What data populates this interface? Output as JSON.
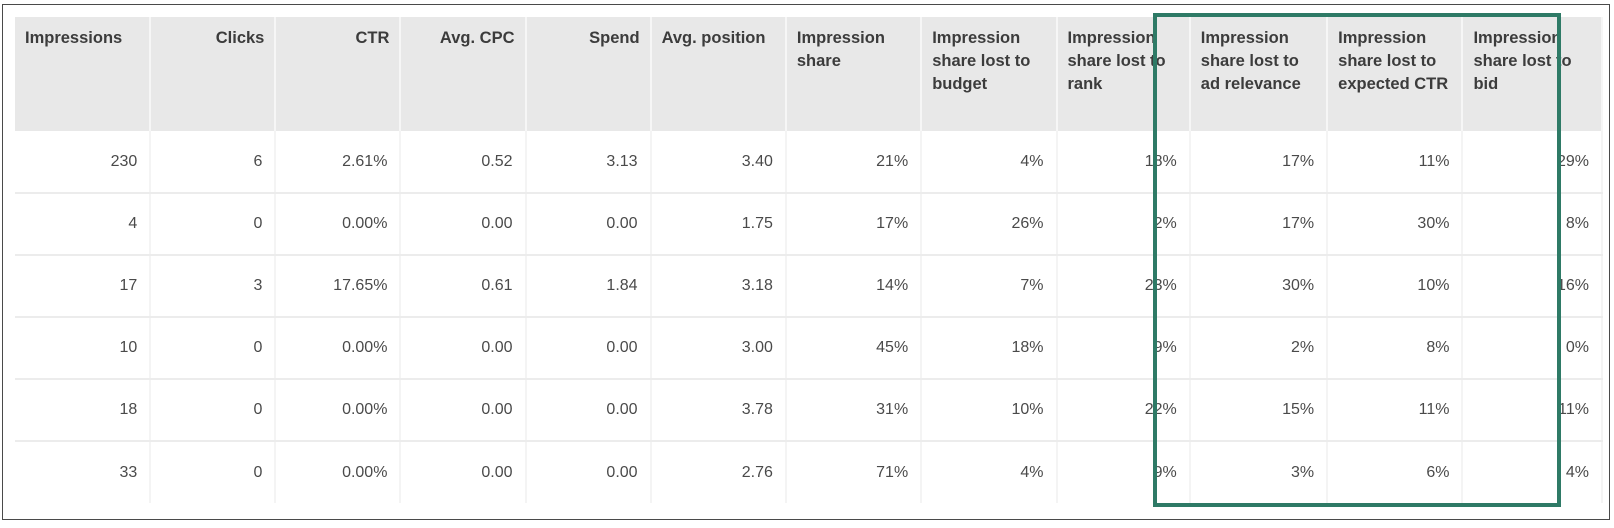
{
  "columns": [
    {
      "key": "impressions",
      "label": "Impressions",
      "align": "l"
    },
    {
      "key": "clicks",
      "label": "Clicks",
      "align": "r"
    },
    {
      "key": "ctr",
      "label": "CTR",
      "align": "r"
    },
    {
      "key": "avg_cpc",
      "label": "Avg. CPC",
      "align": "r"
    },
    {
      "key": "spend",
      "label": "Spend",
      "align": "r"
    },
    {
      "key": "avg_position",
      "label": "Avg. position",
      "align": "l"
    },
    {
      "key": "impression_share",
      "label": "Impression share",
      "align": "l"
    },
    {
      "key": "is_lost_budget",
      "label": "Impression share lost to budget",
      "align": "l"
    },
    {
      "key": "is_lost_rank",
      "label": "Impression share lost to rank",
      "align": "l"
    },
    {
      "key": "is_lost_ad_relevance",
      "label": "Impression share lost to ad relevance",
      "align": "l"
    },
    {
      "key": "is_lost_expected_ctr",
      "label": "Impression share lost to expected CTR",
      "align": "l"
    },
    {
      "key": "is_lost_bid",
      "label": "Impression share lost to bid",
      "align": "l"
    }
  ],
  "rows": [
    [
      "230",
      "6",
      "2.61%",
      "0.52",
      "3.13",
      "3.40",
      "21%",
      "4%",
      "18%",
      "17%",
      "11%",
      "29%"
    ],
    [
      "4",
      "0",
      "0.00%",
      "0.00",
      "0.00",
      "1.75",
      "17%",
      "26%",
      "2%",
      "17%",
      "30%",
      "8%"
    ],
    [
      "17",
      "3",
      "17.65%",
      "0.61",
      "1.84",
      "3.18",
      "14%",
      "7%",
      "23%",
      "30%",
      "10%",
      "16%"
    ],
    [
      "10",
      "0",
      "0.00%",
      "0.00",
      "0.00",
      "3.00",
      "45%",
      "18%",
      "9%",
      "2%",
      "8%",
      "0%"
    ],
    [
      "18",
      "0",
      "0.00%",
      "0.00",
      "0.00",
      "3.78",
      "31%",
      "10%",
      "22%",
      "15%",
      "11%",
      "11%"
    ],
    [
      "33",
      "0",
      "0.00%",
      "0.00",
      "0.00",
      "2.76",
      "71%",
      "4%",
      "9%",
      "3%",
      "6%",
      "4%"
    ]
  ],
  "highlight": {
    "color": "#2e7a66",
    "columns": [
      "is_lost_ad_relevance",
      "is_lost_expected_ctr",
      "is_lost_bid"
    ]
  }
}
